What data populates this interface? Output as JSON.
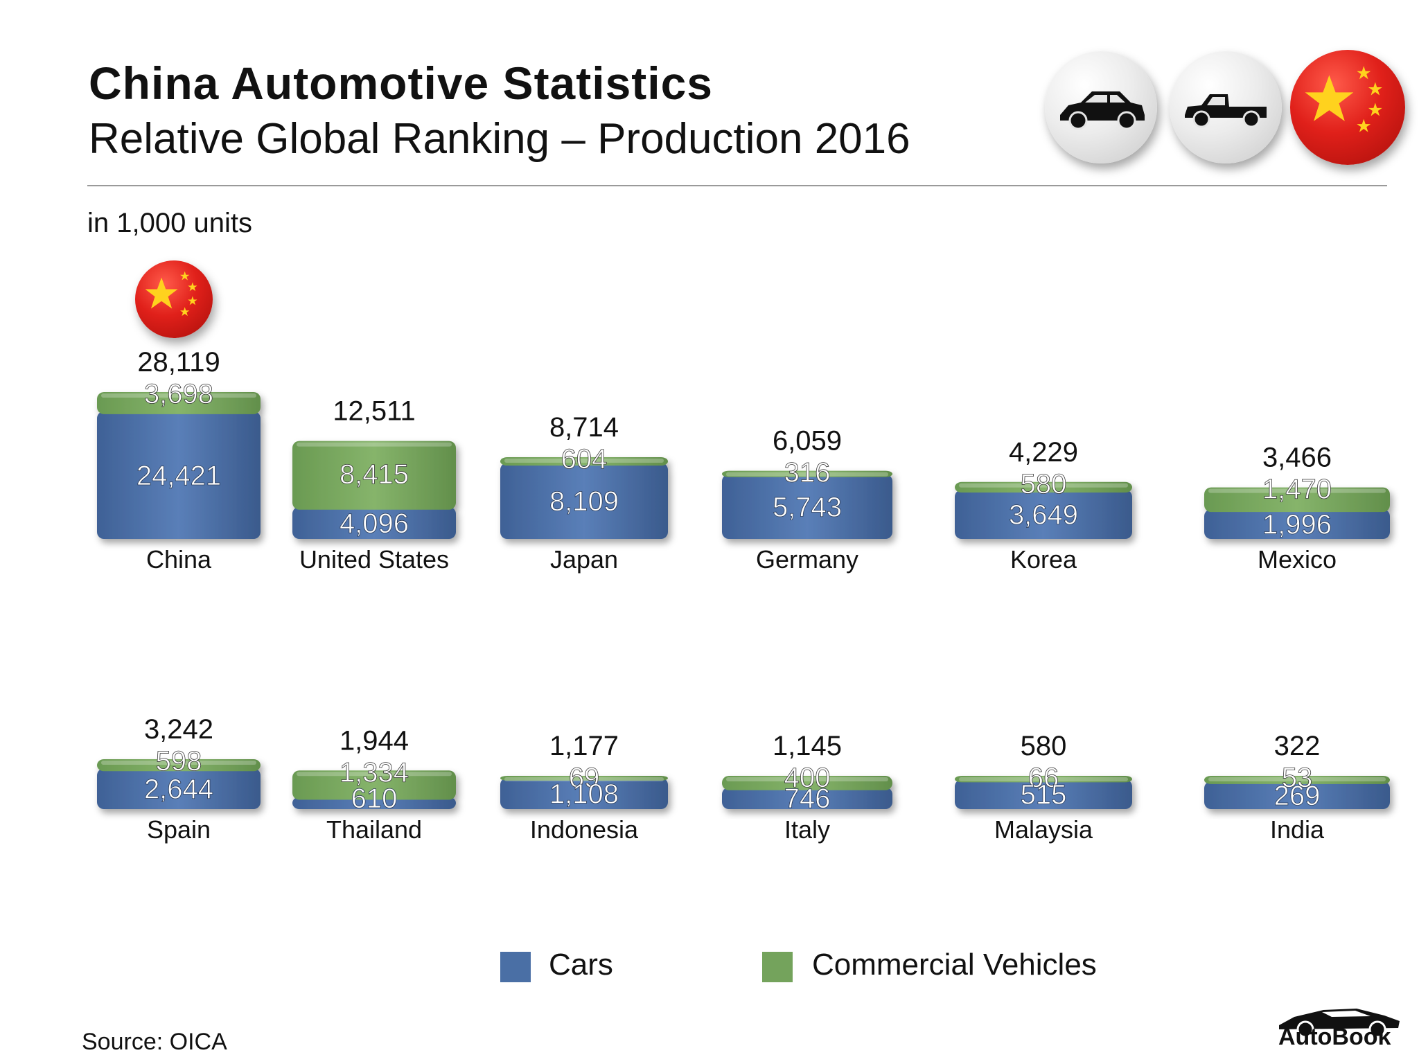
{
  "header": {
    "title": "China Automotive Statistics",
    "subtitle": "Relative Global Ranking – Production 2016",
    "units": "in 1,000 units"
  },
  "icons": {
    "badges": [
      "car-icon",
      "pickup-truck-icon",
      "china-flag-icon"
    ]
  },
  "colors": {
    "cars": "#4a6fa5",
    "commercial": "#74a35c"
  },
  "legend": {
    "cars": "Cars",
    "commercial": "Commercial Vehicles"
  },
  "source": "Source:  OICA",
  "brand": "AutoBook",
  "chart_data": {
    "type": "bar",
    "stacked": true,
    "title": "China Automotive Statistics",
    "subtitle": "Relative Global Ranking – Production 2016",
    "unit_label": "in 1,000 units",
    "categories": [
      "China",
      "United States",
      "Japan",
      "Germany",
      "Korea",
      "Mexico",
      "Spain",
      "Thailand",
      "Indonesia",
      "Italy",
      "Malaysia",
      "India"
    ],
    "series": [
      {
        "name": "Cars",
        "values": [
          24421,
          4096,
          8109,
          5743,
          3649,
          1996,
          2644,
          610,
          1108,
          746,
          515,
          269
        ],
        "labels": [
          "24,421",
          "4,096",
          "8,109",
          "5,743",
          "3,649",
          "1,996",
          "2,644",
          "610",
          "1,108",
          "746",
          "515",
          "269"
        ]
      },
      {
        "name": "Commercial Vehicles",
        "values": [
          3698,
          8415,
          604,
          316,
          580,
          1470,
          598,
          1334,
          69,
          400,
          66,
          53
        ],
        "labels": [
          "3,698",
          "8,415",
          "604",
          "316",
          "580",
          "1,470",
          "598",
          "1,334",
          "69",
          "400",
          "66",
          "53"
        ]
      }
    ],
    "totals": [
      28119,
      12511,
      8714,
      6059,
      4229,
      3466,
      3242,
      1944,
      1177,
      1145,
      580,
      322
    ],
    "total_labels": [
      "28,119",
      "12,511",
      "8,714",
      "6,059",
      "4,229",
      "3,466",
      "3,242",
      "1,944",
      "1,177",
      "1,145",
      "580",
      "322"
    ],
    "legend_position": "bottom"
  }
}
